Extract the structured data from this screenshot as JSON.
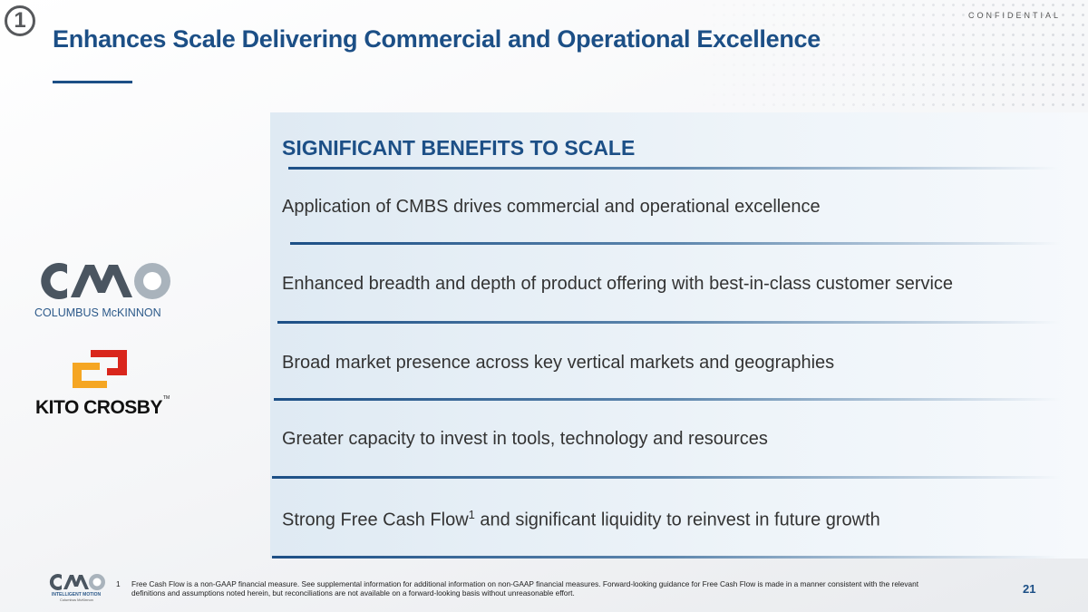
{
  "badge": "1",
  "header": {
    "title": "Enhances Scale Delivering Commercial and Operational Excellence",
    "classification": "CONFIDENTIAL"
  },
  "section": {
    "heading": "SIGNIFICANT BENEFITS TO SCALE",
    "bullets": [
      {
        "text": "Application of CMBS drives commercial and operational excellence"
      },
      {
        "text": "Enhanced breadth and depth of product offering with best-in-class customer service"
      },
      {
        "text": "Broad market presence across key vertical markets and geographies"
      },
      {
        "text": "Greater capacity to invest in tools, technology and resources"
      },
      {
        "before": "Strong Free Cash Flow",
        "sup": "1",
        "after": " and significant liquidity to reinvest in future growth"
      }
    ]
  },
  "logos": {
    "columbus": "COLUMBUS McKINNON",
    "kito": "KITO CROSBY",
    "tm": "TM"
  },
  "footer": {
    "logo_tagline": "INTELLIGENT MOTION",
    "logo_name": "Columbus McKinnon",
    "footnote_number": "1",
    "footnote": "Free Cash Flow is a non-GAAP financial measure. See supplemental information for additional information on non-GAAP financial measures. Forward-looking guidance for Free Cash Flow is made in a manner consistent with the relevant definitions and assumptions noted herein, but reconciliations are not available on a forward-looking basis without unreasonable effort.",
    "page": "21"
  }
}
